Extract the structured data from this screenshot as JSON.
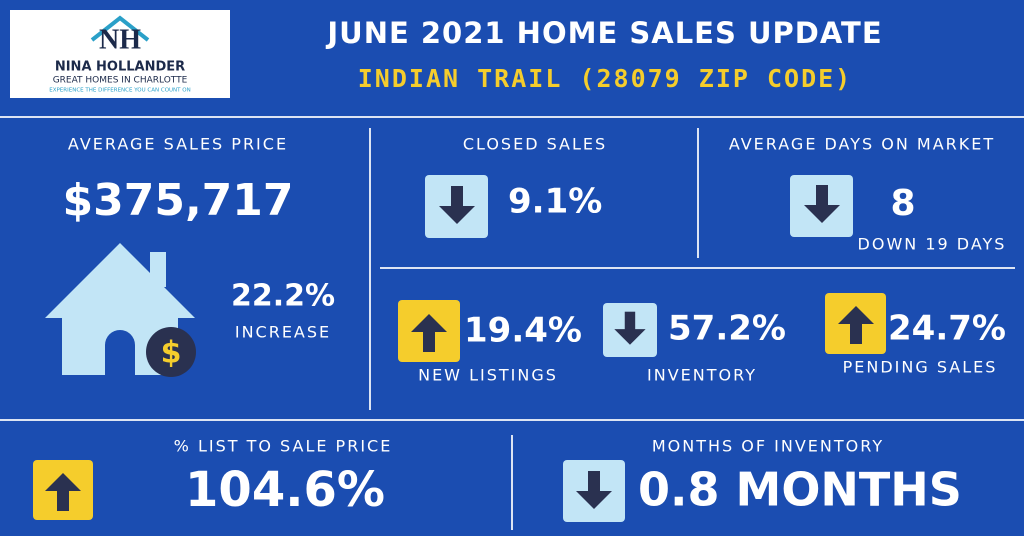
{
  "logo": {
    "monogram": "NH",
    "name": "NINA HOLLANDER",
    "tagline": "GREAT HOMES IN CHARLOTTE",
    "slogan": "EXPERIENCE THE DIFFERENCE YOU CAN COUNT ON"
  },
  "header": {
    "title": "JUNE 2021 HOME SALES UPDATE",
    "subtitle": "INDIAN TRAIL (28079 ZIP CODE)"
  },
  "average_sales_price": {
    "label": "AVERAGE SALES PRICE",
    "value": "$375,717",
    "change": "22.2%",
    "change_label": "INCREASE",
    "icon_symbol": "$"
  },
  "closed_sales": {
    "label": "CLOSED SALES",
    "change": "9.1%"
  },
  "average_days_on_market": {
    "label": "AVERAGE DAYS ON MARKET",
    "value": "8",
    "change_label": "DOWN 19 DAYS"
  },
  "new_listings": {
    "label": "NEW LISTINGS",
    "change": "19.4%"
  },
  "inventory": {
    "label": "INVENTORY",
    "change": "57.2%"
  },
  "pending_sales": {
    "label": "PENDING SALES",
    "change": "24.7%"
  },
  "list_to_sale_price": {
    "label": "% LIST TO SALE PRICE",
    "value": "104.6%"
  },
  "months_of_inventory": {
    "label": "MONTHS OF INVENTORY",
    "value": "0.8 MONTHS"
  }
}
